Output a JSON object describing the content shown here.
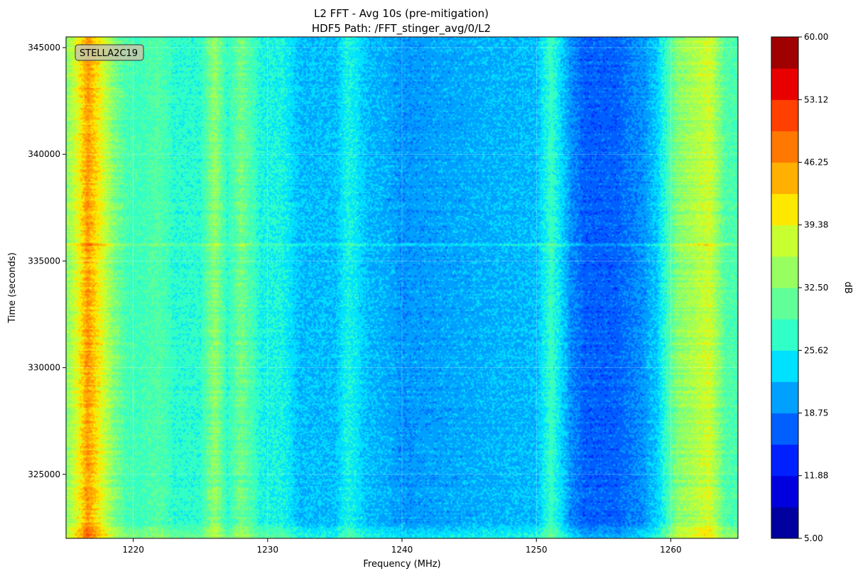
{
  "chart_data": {
    "type": "heatmap",
    "title_lines": [
      "L2 FFT - Avg 10s (pre-mitigation)",
      "HDF5 Path: /FFT_stinger_avg/0/L2"
    ],
    "xlabel": "Frequency (MHz)",
    "ylabel": "Time (seconds)",
    "xlim": [
      1215,
      1265
    ],
    "ylim": [
      322000,
      345500
    ],
    "xticks": [
      1220,
      1230,
      1240,
      1250,
      1260
    ],
    "yticks": [
      325000,
      330000,
      335000,
      340000,
      345000
    ],
    "grid": true,
    "annotation": "STELLA2C19",
    "colorbar": {
      "label": "dB",
      "min": 5.0,
      "max": 60.0,
      "tick_values": [
        5.0,
        11.88,
        18.75,
        25.62,
        32.5,
        39.38,
        46.25,
        53.12,
        60.0
      ],
      "tick_labels": [
        "5.00",
        "11.88",
        "18.75",
        "25.62",
        "32.50",
        "39.38",
        "46.25",
        "53.12",
        "60.00"
      ],
      "levels": 16,
      "colors": [
        "#00009f",
        "#0000df",
        "#0020ff",
        "#0060ff",
        "#00a0ff",
        "#00e0ff",
        "#30ffc8",
        "#60ff98",
        "#98ff60",
        "#c8ff30",
        "#ffe800",
        "#ffb000",
        "#ff7800",
        "#ff4000",
        "#e80000",
        "#9f0000"
      ]
    },
    "spectrum_profile": {
      "freq_mhz": [
        1215,
        1216,
        1216.6,
        1217.5,
        1218.5,
        1219.5,
        1220.5,
        1221.8,
        1223,
        1225,
        1226.1,
        1227,
        1228,
        1229.5,
        1231,
        1232.5,
        1235,
        1236,
        1237.5,
        1239,
        1240,
        1245,
        1250,
        1251.1,
        1252.5,
        1253.5,
        1256,
        1258,
        1259,
        1260.5,
        1261.5,
        1262.9,
        1264,
        1265
      ],
      "level_db": [
        33,
        40,
        46,
        40,
        33,
        29,
        28,
        30,
        27,
        27,
        34,
        27,
        32,
        26,
        26,
        22,
        22,
        26,
        22,
        21,
        20,
        21,
        22,
        28,
        20,
        17,
        17,
        20,
        23,
        33,
        35,
        38,
        30,
        29
      ]
    },
    "time_event": {
      "time_s": 335800,
      "delta_db": 4
    },
    "narrow_lines_mhz": [
      1226.1,
      1235.9,
      1240,
      1251.1,
      1262.9
    ]
  }
}
